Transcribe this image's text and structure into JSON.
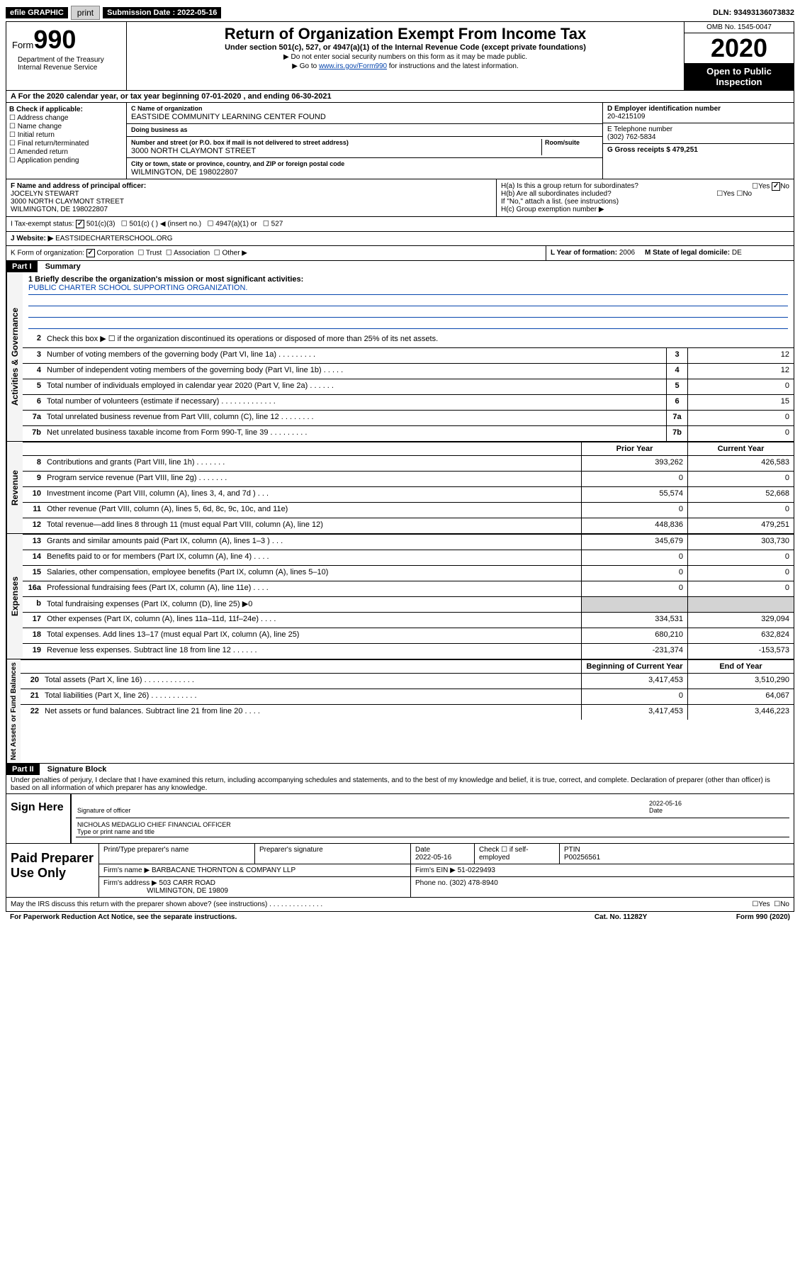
{
  "topbar": {
    "efile": "efile GRAPHIC",
    "print": "print",
    "submission_label": "Submission Date : 2022-05-16",
    "dln": "DLN: 93493136073832"
  },
  "header": {
    "form_prefix": "Form",
    "form_number": "990",
    "dept": "Department of the Treasury Internal Revenue Service",
    "title": "Return of Organization Exempt From Income Tax",
    "sub": "Under section 501(c), 527, or 4947(a)(1) of the Internal Revenue Code (except private foundations)",
    "note1": "▶ Do not enter social security numbers on this form as it may be made public.",
    "note2_pre": "▶ Go to ",
    "note2_link": "www.irs.gov/Form990",
    "note2_post": " for instructions and the latest information.",
    "omb": "OMB No. 1545-0047",
    "year": "2020",
    "open": "Open to Public Inspection"
  },
  "line_a": "A For the 2020 calendar year, or tax year beginning 07-01-2020   , and ending 06-30-2021",
  "box_b": {
    "title": "B Check if applicable:",
    "items": [
      "Address change",
      "Name change",
      "Initial return",
      "Final return/terminated",
      "Amended return",
      "Application pending"
    ]
  },
  "box_c": {
    "name_label": "C Name of organization",
    "name": "EASTSIDE COMMUNITY LEARNING CENTER FOUND",
    "dba_label": "Doing business as",
    "addr_label": "Number and street (or P.O. box if mail is not delivered to street address)",
    "room_label": "Room/suite",
    "addr": "3000 NORTH CLAYMONT STREET",
    "city_label": "City or town, state or province, country, and ZIP or foreign postal code",
    "city": "WILMINGTON, DE  198022807"
  },
  "box_d": {
    "label": "D Employer identification number",
    "val": "20-4215109"
  },
  "box_e": {
    "label": "E Telephone number",
    "val": "(302) 762-5834"
  },
  "box_g": {
    "label": "G Gross receipts $ 479,251"
  },
  "box_f": {
    "label": "F  Name and address of principal officer:",
    "name": "JOCELYN STEWART",
    "addr": "3000 NORTH CLAYMONT STREET",
    "city": "WILMINGTON, DE  198022807"
  },
  "box_h": {
    "ha": "H(a)  Is this a group return for subordinates?",
    "hb": "H(b)  Are all subordinates included?",
    "hb_note": "If \"No,\" attach a list. (see instructions)",
    "hc": "H(c)  Group exemption number ▶",
    "yes": "Yes",
    "no": "No"
  },
  "tax_exempt": {
    "label": "I   Tax-exempt status:",
    "c501c3": "501(c)(3)",
    "c501c": "501(c) (    ) ◀ (insert no.)",
    "c4947": "4947(a)(1) or",
    "c527": "527"
  },
  "website": {
    "label": "J   Website: ▶",
    "val": "EASTSIDECHARTERSCHOOL.ORG"
  },
  "line_k": {
    "label": "K Form of organization:",
    "corp": "Corporation",
    "trust": "Trust",
    "assoc": "Association",
    "other": "Other ▶",
    "year_label": "L Year of formation: ",
    "year": "2006",
    "state_label": "M State of legal domicile: ",
    "state": "DE"
  },
  "part1": {
    "header": "Part I",
    "title": "Summary",
    "mission_label": "1   Briefly describe the organization's mission or most significant activities:",
    "mission": "PUBLIC CHARTER SCHOOL SUPPORTING ORGANIZATION.",
    "line2": "Check this box ▶ ☐  if the organization discontinued its operations or disposed of more than 25% of its net assets.",
    "vlabel_ag": "Activities & Governance",
    "vlabel_rev": "Revenue",
    "vlabel_exp": "Expenses",
    "vlabel_net": "Net Assets or Fund Balances",
    "lines_ag": [
      {
        "n": "3",
        "d": "Number of voting members of the governing body (Part VI, line 1a)   .    .    .    .    .    .    .    .    .",
        "v": "12"
      },
      {
        "n": "4",
        "d": "Number of independent voting members of the governing body (Part VI, line 1b)   .    .    .    .    .",
        "v": "12"
      },
      {
        "n": "5",
        "d": "Total number of individuals employed in calendar year 2020 (Part V, line 2a)   .    .    .    .    .    .",
        "v": "0"
      },
      {
        "n": "6",
        "d": "Total number of volunteers (estimate if necessary)   .    .    .    .    .    .    .    .    .    .    .    .    .",
        "v": "15"
      },
      {
        "n": "7a",
        "d": "Total unrelated business revenue from Part VIII, column (C), line 12   .    .    .    .    .    .    .    .",
        "v": "0"
      },
      {
        "n": "7b",
        "d": "Net unrelated business taxable income from Form 990-T, line 39   .    .    .    .    .    .    .    .    .",
        "v": "0"
      }
    ],
    "col_prior": "Prior Year",
    "col_curr": "Current Year",
    "lines_rev": [
      {
        "n": "8",
        "d": "Contributions and grants (Part VIII, line 1h)   .    .    .    .    .    .    .",
        "p": "393,262",
        "c": "426,583"
      },
      {
        "n": "9",
        "d": "Program service revenue (Part VIII, line 2g)   .    .    .    .    .    .    .",
        "p": "0",
        "c": "0"
      },
      {
        "n": "10",
        "d": "Investment income (Part VIII, column (A), lines 3, 4, and 7d )   .    .    .",
        "p": "55,574",
        "c": "52,668"
      },
      {
        "n": "11",
        "d": "Other revenue (Part VIII, column (A), lines 5, 6d, 8c, 9c, 10c, and 11e)",
        "p": "0",
        "c": "0"
      },
      {
        "n": "12",
        "d": "Total revenue—add lines 8 through 11 (must equal Part VIII, column (A), line 12)",
        "p": "448,836",
        "c": "479,251"
      }
    ],
    "lines_exp": [
      {
        "n": "13",
        "d": "Grants and similar amounts paid (Part IX, column (A), lines 1–3 )   .    .    .",
        "p": "345,679",
        "c": "303,730"
      },
      {
        "n": "14",
        "d": "Benefits paid to or for members (Part IX, column (A), line 4)   .    .    .    .",
        "p": "0",
        "c": "0"
      },
      {
        "n": "15",
        "d": "Salaries, other compensation, employee benefits (Part IX, column (A), lines 5–10)",
        "p": "0",
        "c": "0"
      },
      {
        "n": "16a",
        "d": "Professional fundraising fees (Part IX, column (A), line 11e)   .    .    .    .",
        "p": "0",
        "c": "0"
      },
      {
        "n": "b",
        "d": "Total fundraising expenses (Part IX, column (D), line 25) ▶0",
        "p": "",
        "c": "",
        "gray": true
      },
      {
        "n": "17",
        "d": "Other expenses (Part IX, column (A), lines 11a–11d, 11f–24e)   .    .    .    .",
        "p": "334,531",
        "c": "329,094"
      },
      {
        "n": "18",
        "d": "Total expenses. Add lines 13–17 (must equal Part IX, column (A), line 25)",
        "p": "680,210",
        "c": "632,824"
      },
      {
        "n": "19",
        "d": "Revenue less expenses. Subtract line 18 from line 12   .    .    .    .    .    .",
        "p": "-231,374",
        "c": "-153,573"
      }
    ],
    "col_begin": "Beginning of Current Year",
    "col_end": "End of Year",
    "lines_net": [
      {
        "n": "20",
        "d": "Total assets (Part X, line 16)   .    .    .    .    .    .    .    .    .    .    .    .",
        "p": "3,417,453",
        "c": "3,510,290"
      },
      {
        "n": "21",
        "d": "Total liabilities (Part X, line 26)   .    .    .    .    .    .    .    .    .    .    .",
        "p": "0",
        "c": "64,067"
      },
      {
        "n": "22",
        "d": "Net assets or fund balances. Subtract line 21 from line 20   .    .    .    .",
        "p": "3,417,453",
        "c": "3,446,223"
      }
    ]
  },
  "part2": {
    "header": "Part II",
    "title": "Signature Block",
    "perjury": "Under penalties of perjury, I declare that I have examined this return, including accompanying schedules and statements, and to the best of my knowledge and belief, it is true, correct, and complete. Declaration of preparer (other than officer) is based on all information of which preparer has any knowledge.",
    "sign_here": "Sign Here",
    "sig_officer": "Signature of officer",
    "sig_date": "2022-05-16",
    "date_label": "Date",
    "officer_name": "NICHOLAS MEDAGLIO  CHIEF FINANCIAL OFFICER",
    "type_label": "Type or print name and title",
    "paid": "Paid Preparer Use Only",
    "prep_name_label": "Print/Type preparer's name",
    "prep_sig_label": "Preparer's signature",
    "prep_date": "2022-05-16",
    "check_self": "Check ☐ if self-employed",
    "ptin_label": "PTIN",
    "ptin": "P00256561",
    "firm_name_label": "Firm's name      ▶",
    "firm_name": "BARBACANE THORNTON & COMPANY LLP",
    "firm_ein_label": "Firm's EIN ▶",
    "firm_ein": "51-0229493",
    "firm_addr_label": "Firm's address ▶",
    "firm_addr": "503 CARR ROAD",
    "firm_city": "WILMINGTON, DE  19809",
    "phone_label": "Phone no.",
    "phone": "(302) 478-8940",
    "discuss": "May the IRS discuss this return with the preparer shown above? (see instructions)   .    .    .    .    .    .    .    .    .    .    .    .    .    .",
    "yes": "Yes",
    "no": "No"
  },
  "footer": {
    "paperwork": "For Paperwork Reduction Act Notice, see the separate instructions.",
    "cat": "Cat. No. 11282Y",
    "form": "Form 990 (2020)"
  }
}
